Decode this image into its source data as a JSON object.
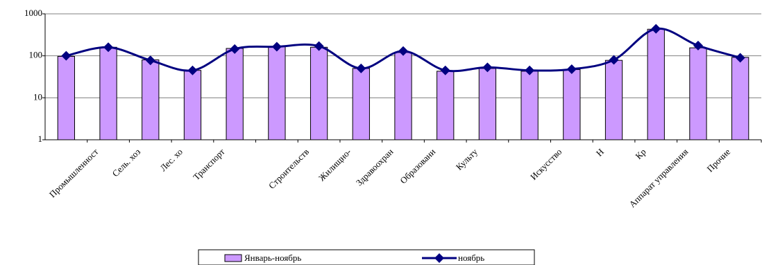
{
  "chart_data": {
    "type": "bar-line",
    "categories": [
      "Промышленност",
      "Сель. хоз",
      "Лес. хо",
      "Транспорт",
      null,
      "Строительств",
      "Жилищно-",
      "Здравоохран",
      "Образовани",
      "Культу",
      null,
      "Искусство",
      "Н",
      "Кр",
      "Аппарат управления",
      "Прочие",
      null
    ],
    "series": [
      {
        "name": "Январь-ноябрь",
        "type": "bar",
        "color": "#cc99ff",
        "values": [
          97,
          160,
          80,
          45,
          150,
          165,
          160,
          50,
          120,
          43,
          50,
          43,
          47,
          78,
          430,
          155,
          92
        ]
      },
      {
        "name": "ноябрь",
        "type": "line",
        "color": "#000080",
        "values": [
          100,
          160,
          78,
          45,
          145,
          165,
          170,
          50,
          130,
          45,
          53,
          45,
          48,
          80,
          440,
          175,
          90
        ]
      }
    ],
    "ylim": [
      1,
      1000
    ],
    "yticks": [
      1,
      10,
      100,
      1000
    ],
    "log_scale": true,
    "grid": true,
    "legend": "bottom"
  }
}
